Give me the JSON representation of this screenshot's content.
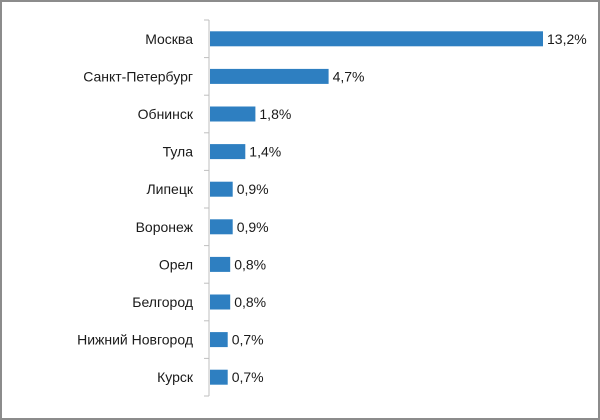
{
  "chart_data": {
    "type": "bar",
    "orientation": "horizontal",
    "categories": [
      "Москва",
      "Санкт-Петербург",
      "Обнинск",
      "Тула",
      "Липецк",
      "Воронеж",
      "Орел",
      "Белгород",
      "Нижний Новгород",
      "Курск"
    ],
    "values": [
      13.2,
      4.7,
      1.8,
      1.4,
      0.9,
      0.9,
      0.8,
      0.8,
      0.7,
      0.7
    ],
    "value_labels": [
      "13,2%",
      "4,7%",
      "1,8%",
      "1,4%",
      "0,9%",
      "0,9%",
      "0,8%",
      "0,8%",
      "0,7%",
      "0,7%"
    ],
    "title": "",
    "xlabel": "",
    "ylabel": "",
    "xlim": [
      0,
      13.2
    ],
    "grid": false,
    "legend": "none",
    "colors": {
      "bar": "#2e7fc1",
      "axis": "#bfbfbf",
      "text": "#1a1a1a",
      "border": "#8c8c8c"
    }
  }
}
